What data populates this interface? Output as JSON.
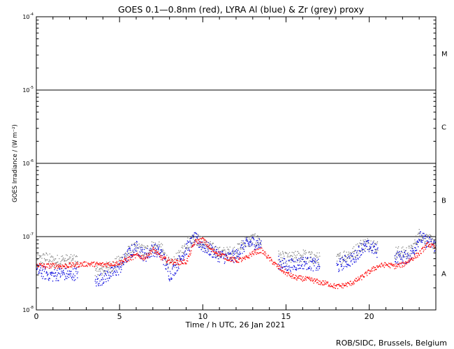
{
  "chart_data": {
    "type": "scatter",
    "title": "GOES 0.1—0.8nm (red), LYRA Al (blue) & Zr (grey) proxy",
    "xlabel": "Time / h UTC, 26 Jan 2021",
    "ylabel": "GOES Irradiance / (W m⁻²)",
    "footer": "ROB/SIDC, Brussels, Belgium",
    "xlim": [
      0,
      24
    ],
    "ylim": [
      1e-08,
      0.0001
    ],
    "y_scale": "log",
    "x_ticks": [
      0,
      5,
      10,
      15,
      20
    ],
    "y_ticks": [
      {
        "value": 1e-08,
        "label": "10",
        "exp": "-8"
      },
      {
        "value": 1e-07,
        "label": "10",
        "exp": "-7"
      },
      {
        "value": 1e-06,
        "label": "10",
        "exp": "-6"
      },
      {
        "value": 1e-05,
        "label": "10",
        "exp": "-5"
      },
      {
        "value": 0.0001,
        "label": "10",
        "exp": "-4"
      }
    ],
    "flare_class_lines": [
      1e-07,
      1e-06,
      1e-05
    ],
    "flare_classes": [
      {
        "label": "A",
        "center": 3.16e-08
      },
      {
        "label": "B",
        "center": 3.16e-07
      },
      {
        "label": "C",
        "center": 3.16e-06
      },
      {
        "label": "M",
        "center": 3.16e-05
      }
    ],
    "grid": false,
    "colors": {
      "goes": "#ff0000",
      "lyra_al": "#0000dd",
      "lyra_zr": "#888888",
      "axes": "#000000"
    },
    "series": [
      {
        "name": "GOES 0.1-0.8nm",
        "color": "#ff0000",
        "x": [
          0,
          0.5,
          1,
          1.5,
          2,
          2.5,
          3,
          4,
          4.5,
          5,
          5.5,
          6,
          6.5,
          7,
          7.5,
          8,
          8.5,
          9,
          9.5,
          10,
          10.5,
          11,
          11.5,
          12,
          12.5,
          13,
          13.5,
          14,
          14.5,
          15,
          15.5,
          16,
          16.5,
          17,
          17.5,
          18,
          18.5,
          19,
          19.5,
          20,
          20.5,
          21,
          21.5,
          22,
          22.5,
          23,
          23.5,
          24
        ],
        "y": [
          4.2e-08,
          4e-08,
          4.1e-08,
          4e-08,
          4.1e-08,
          4.2e-08,
          4.3e-08,
          4.2e-08,
          4.3e-08,
          4.5e-08,
          5e-08,
          5.6e-08,
          5.2e-08,
          6.8e-08,
          5.2e-08,
          4.7e-08,
          4.5e-08,
          4.6e-08,
          8.6e-08,
          9.2e-08,
          6.6e-08,
          5.9e-08,
          5.1e-08,
          4.8e-08,
          5e-08,
          6.1e-08,
          6.6e-08,
          5e-08,
          3.9e-08,
          3.2e-08,
          2.8e-08,
          2.7e-08,
          2.6e-08,
          2.4e-08,
          2.3e-08,
          2.1e-08,
          2.2e-08,
          2.4e-08,
          2.8e-08,
          3.4e-08,
          4e-08,
          4.2e-08,
          4e-08,
          4.2e-08,
          5e-08,
          6e-08,
          8e-08,
          7e-08
        ]
      },
      {
        "name": "LYRA Al proxy",
        "color": "#0000dd",
        "x": [
          0,
          0.5,
          1,
          1.5,
          2,
          2.5,
          3,
          3.5,
          4,
          4.5,
          5,
          5.5,
          6,
          6.5,
          7,
          7.5,
          8,
          8.5,
          9,
          9.5,
          10,
          10.5,
          11,
          11.5,
          12,
          12.5,
          13,
          13.5,
          14,
          14.5,
          15,
          15.5,
          16,
          16.5,
          17,
          17.5,
          18,
          18.5,
          19,
          19.5,
          20,
          20.5,
          21,
          21.5,
          22,
          22.5,
          23,
          23.5,
          24
        ],
        "y": [
          3.5e-08,
          3.2e-08,
          3e-08,
          3.2e-08,
          3e-08,
          3.3e-08,
          null,
          2.4e-08,
          2.8e-08,
          3.2e-08,
          3.8e-08,
          5.8e-08,
          7.2e-08,
          5.5e-08,
          6.8e-08,
          6e-08,
          3e-08,
          4.4e-08,
          7e-08,
          9.5e-08,
          7.5e-08,
          6.5e-08,
          5.5e-08,
          5.2e-08,
          5.6e-08,
          7.8e-08,
          8.5e-08,
          7.8e-08,
          null,
          4.5e-08,
          4.1e-08,
          4.2e-08,
          4.5e-08,
          4.3e-08,
          4e-08,
          null,
          3.8e-08,
          4.6e-08,
          5e-08,
          7e-08,
          7.5e-08,
          6.3e-08,
          null,
          5.4e-08,
          5.2e-08,
          5.6e-08,
          1e-07,
          8.5e-08,
          7.5e-08
        ]
      },
      {
        "name": "LYRA Zr proxy",
        "color": "#888888",
        "x": [
          0,
          0.5,
          1,
          1.5,
          2,
          2.5,
          3,
          3.5,
          4,
          4.5,
          5,
          5.5,
          6,
          6.5,
          7,
          7.5,
          8,
          8.5,
          9,
          9.5,
          10,
          10.5,
          11,
          11.5,
          12,
          12.5,
          13,
          13.5,
          14,
          14.5,
          15,
          15.5,
          16,
          16.5,
          17,
          17.5,
          18,
          18.5,
          19,
          19.5,
          20,
          20.5,
          21,
          21.5,
          22,
          22.5,
          23,
          23.5,
          24
        ],
        "y": [
          4.6e-08,
          5.2e-08,
          4.6e-08,
          4.8e-08,
          4.7e-08,
          4.8e-08,
          null,
          3.2e-08,
          3.6e-08,
          4e-08,
          4.6e-08,
          6.2e-08,
          7e-08,
          6.3e-08,
          7.5e-08,
          6.8e-08,
          4e-08,
          5.2e-08,
          8.2e-08,
          9.8e-08,
          8e-08,
          7e-08,
          6e-08,
          6e-08,
          6.4e-08,
          8.4e-08,
          9.2e-08,
          8.6e-08,
          null,
          5.4e-08,
          5e-08,
          5.2e-08,
          5.6e-08,
          5.2e-08,
          5e-08,
          null,
          4.8e-08,
          5.6e-08,
          6e-08,
          7.8e-08,
          8.2e-08,
          7.2e-08,
          null,
          6.2e-08,
          6e-08,
          6.4e-08,
          1.1e-07,
          9e-08,
          8e-08
        ]
      }
    ]
  }
}
